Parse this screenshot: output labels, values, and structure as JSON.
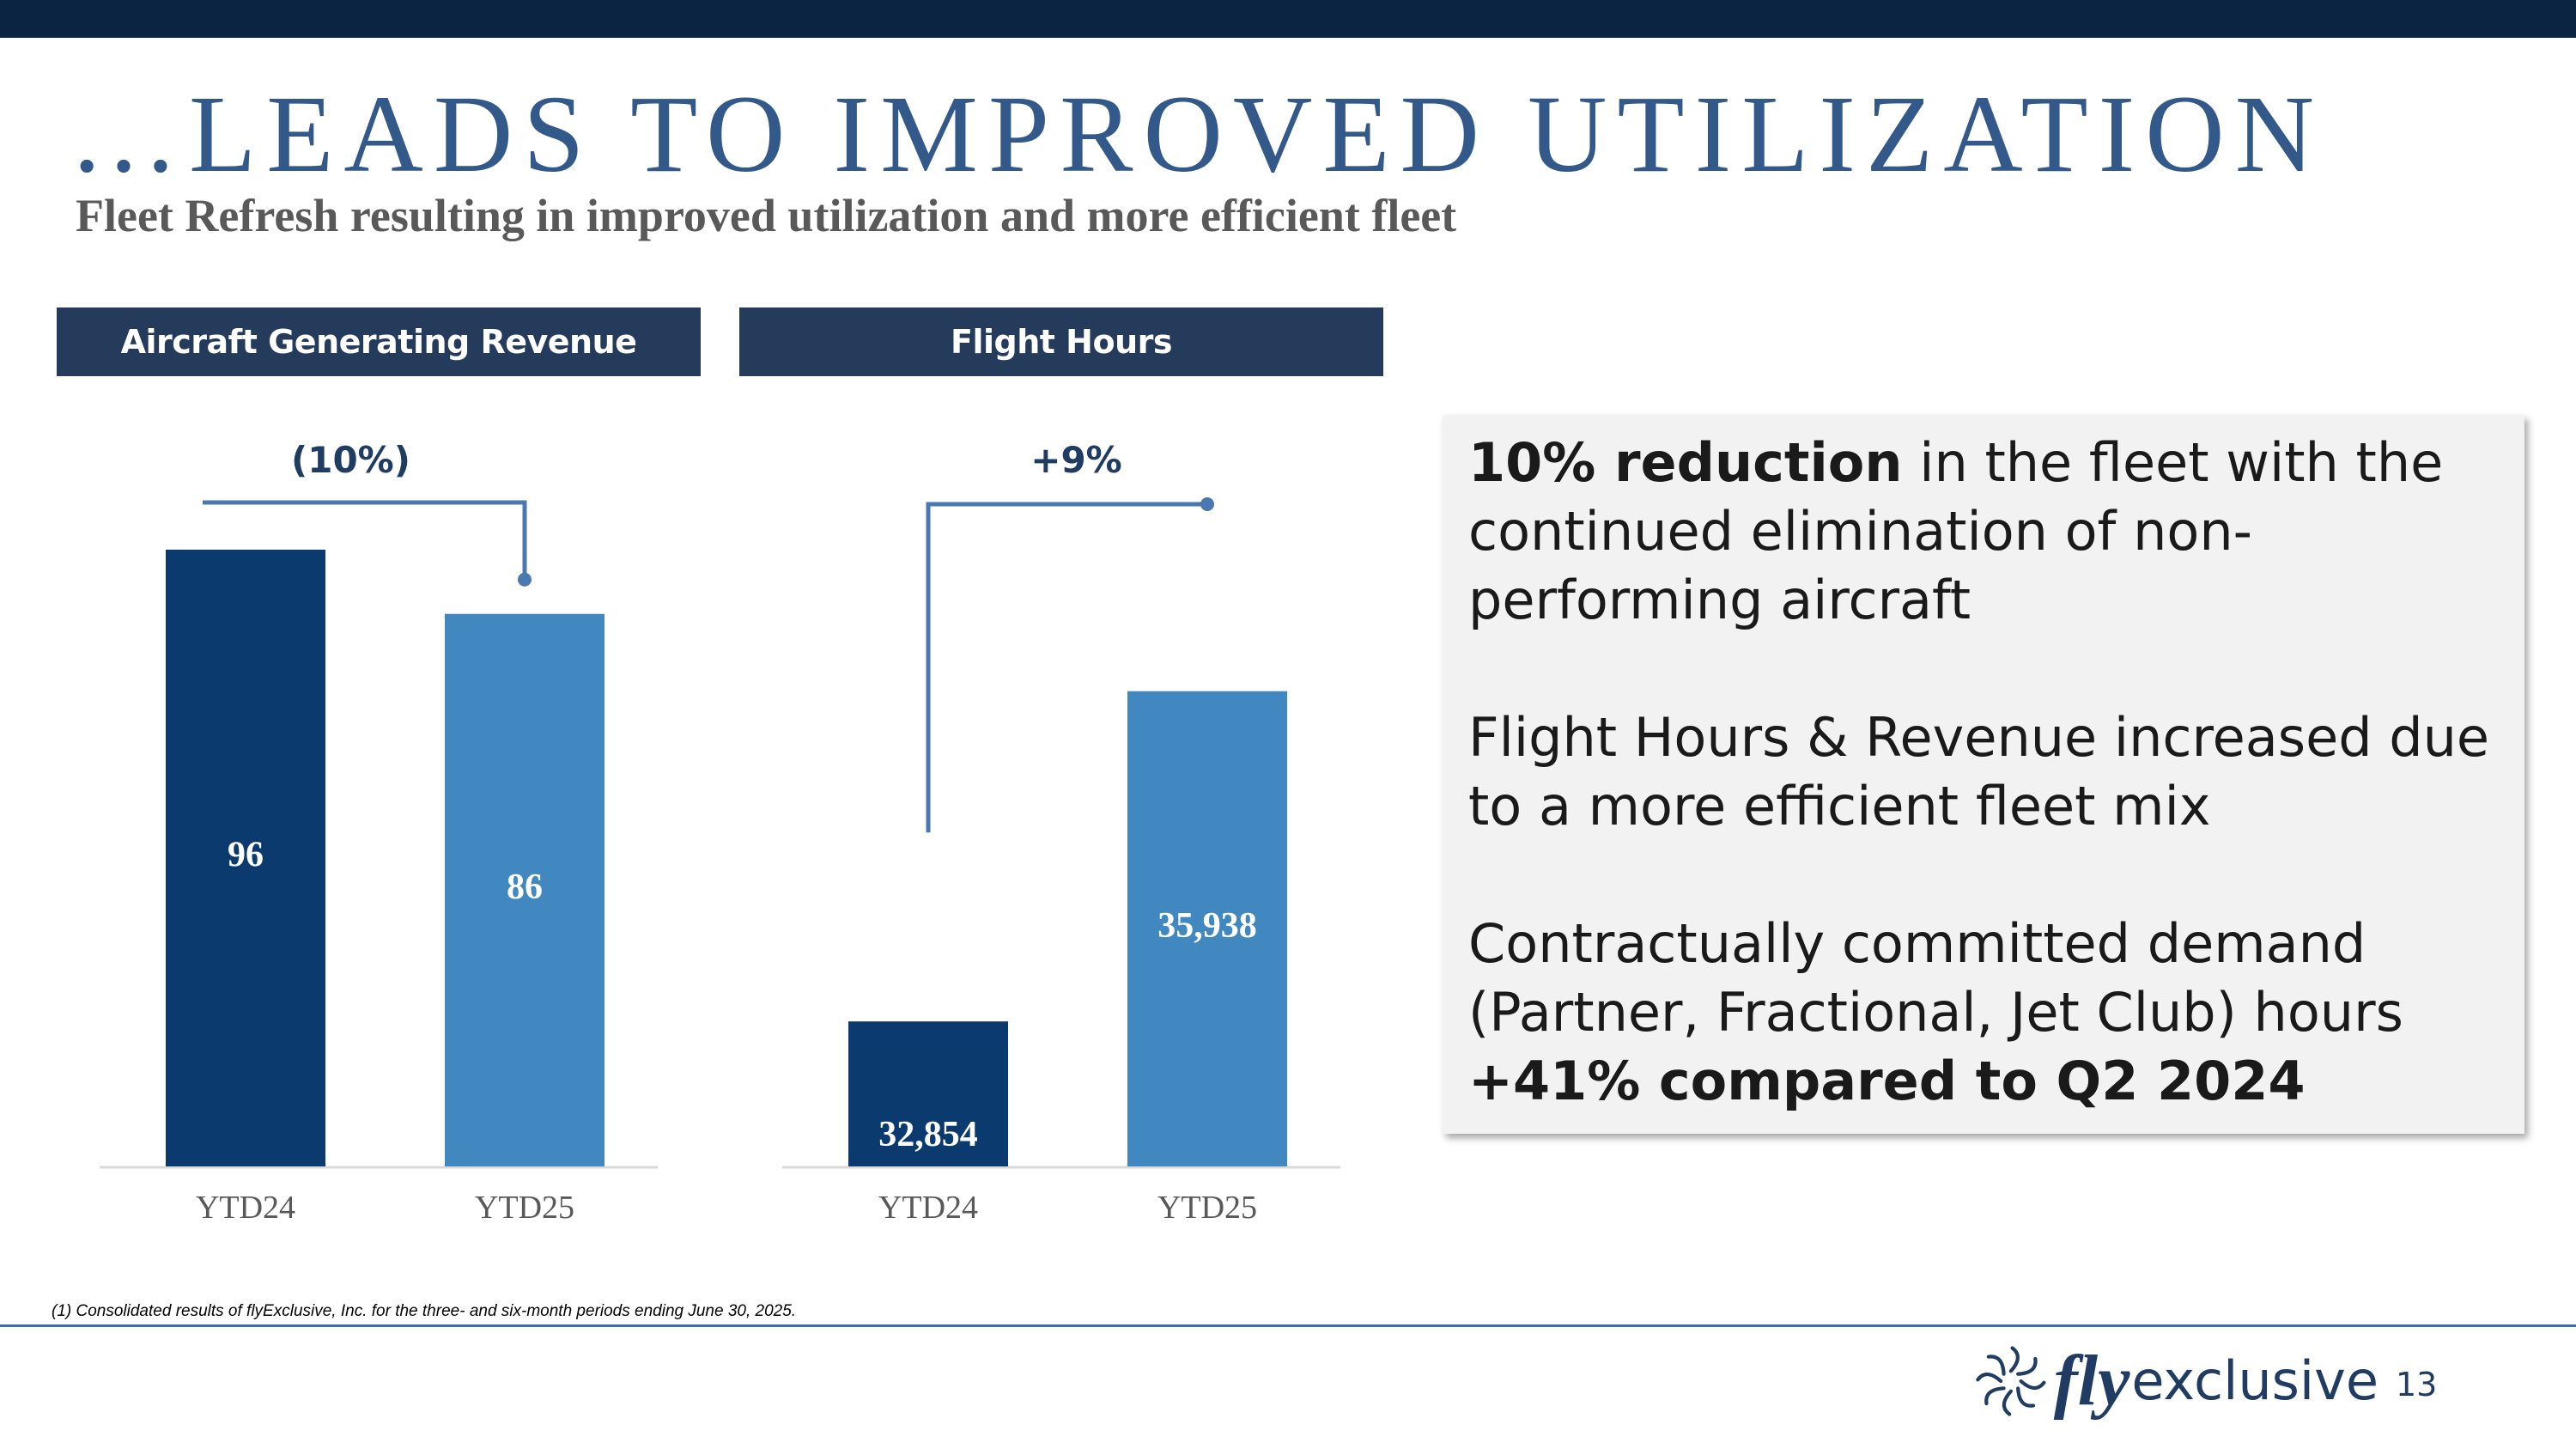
{
  "slide": {
    "title": "…LEADS TO IMPROVED UTILIZATION",
    "subtitle": "Fleet Refresh resulting in improved utilization and more efficient fleet",
    "footnote": "(1) Consolidated results of flyExclusive, Inc. for the three- and six-month periods ending June 30, 2025.",
    "page_number": "13",
    "logo": {
      "fly": "fly",
      "exclusive": "exclusive",
      "icon": "turbine-logo-icon"
    }
  },
  "colors": {
    "dark_bar": "#0b3a6e",
    "light_bar": "#4088bf",
    "connector": "#4a78b0",
    "header_bg": "#243b5c"
  },
  "chart_data": [
    {
      "type": "bar",
      "title": "Aircraft Generating Revenue",
      "categories": [
        "YTD24",
        "YTD25"
      ],
      "values": [
        96,
        86
      ],
      "value_labels": [
        "96",
        "86"
      ],
      "change_label": "(10%)",
      "ylim": [
        0,
        100
      ]
    },
    {
      "type": "bar",
      "title": "Flight Hours",
      "categories": [
        "YTD24",
        "YTD25"
      ],
      "values": [
        32854,
        35938
      ],
      "value_labels": [
        "32,854",
        "35,938"
      ],
      "change_label": "+9%",
      "ylim": [
        31500,
        37500
      ]
    }
  ],
  "callout": {
    "p1_bold": "10% reduction",
    "p1_rest": " in the fleet with the continued elimination of non-performing aircraft",
    "p2": "Flight Hours & Revenue increased due to a more efficient fleet mix",
    "p3_text": "Contractually committed demand (Partner, Fractional, Jet Club) hours ",
    "p3_bold": "+41% compared to Q2 2024"
  }
}
